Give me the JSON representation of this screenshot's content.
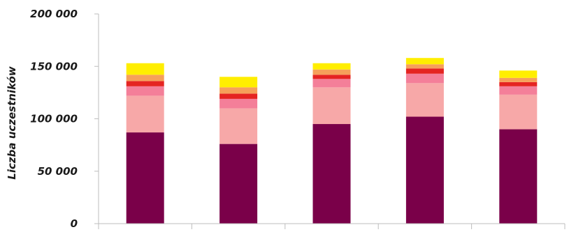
{
  "chart_data": {
    "type": "bar",
    "stacked": true,
    "title": "",
    "xlabel": "",
    "ylabel": "Liczba uczestników",
    "ylim": [
      0,
      200000
    ],
    "yticks": [
      {
        "value": 0,
        "label": "0"
      },
      {
        "value": 50000,
        "label": "50 000"
      },
      {
        "value": 100000,
        "label": "100 000"
      },
      {
        "value": 150000,
        "label": "150 000"
      },
      {
        "value": 200000,
        "label": "200 000"
      }
    ],
    "categories": [
      "",
      "",
      "",
      "",
      ""
    ],
    "grid": false,
    "legend": "none",
    "series": [
      {
        "color": "#7a0049",
        "values": [
          87000,
          76000,
          95000,
          102000,
          90000
        ]
      },
      {
        "color": "#f7a8a8",
        "values": [
          35000,
          34000,
          35000,
          32000,
          33000
        ]
      },
      {
        "color": "#f47f99",
        "values": [
          9000,
          9000,
          8000,
          9000,
          8000
        ]
      },
      {
        "color": "#e52421",
        "values": [
          5000,
          5000,
          4000,
          5000,
          4000
        ]
      },
      {
        "color": "#f6a05a",
        "values": [
          6000,
          6000,
          5000,
          4000,
          4000
        ]
      },
      {
        "color": "#ffee00",
        "values": [
          11000,
          10000,
          6000,
          6000,
          7000
        ]
      }
    ]
  }
}
